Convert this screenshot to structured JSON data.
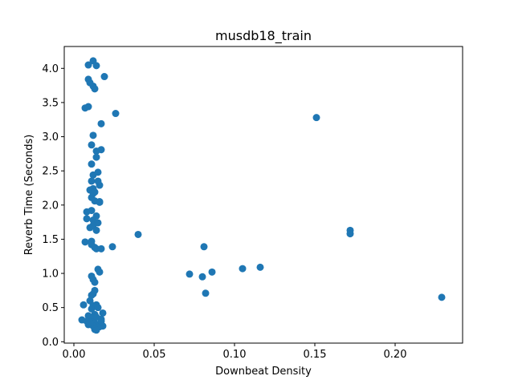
{
  "chart_data": {
    "type": "scatter",
    "title": "musdb18_train",
    "xlabel": "Downbeat Density",
    "ylabel": "Reverb Time (Seconds)",
    "xlim": [
      -0.006,
      0.242
    ],
    "ylim": [
      -0.02,
      4.32
    ],
    "xticks": [
      0.0,
      0.05,
      0.1,
      0.15,
      0.2
    ],
    "xtick_labels": [
      "0.00",
      "0.05",
      "0.10",
      "0.15",
      "0.20"
    ],
    "yticks": [
      0.0,
      0.5,
      1.0,
      1.5,
      2.0,
      2.5,
      3.0,
      3.5,
      4.0
    ],
    "ytick_labels": [
      "0.0",
      "0.5",
      "1.0",
      "1.5",
      "2.0",
      "2.5",
      "3.0",
      "3.5",
      "4.0"
    ],
    "grid": false,
    "marker_color": "#1f77b4",
    "series": [
      {
        "x": [
          0.009,
          0.012,
          0.014,
          0.019,
          0.009,
          0.01,
          0.012,
          0.013,
          0.007,
          0.009,
          0.026,
          0.017,
          0.012,
          0.011,
          0.017,
          0.014,
          0.014,
          0.011,
          0.012,
          0.015,
          0.011,
          0.016,
          0.015,
          0.01,
          0.012,
          0.013,
          0.016,
          0.012,
          0.011,
          0.013,
          0.016,
          0.008,
          0.011,
          0.014,
          0.008,
          0.012,
          0.015,
          0.01,
          0.012,
          0.014,
          0.007,
          0.011,
          0.011,
          0.013,
          0.014,
          0.017,
          0.024,
          0.04,
          0.081,
          0.015,
          0.016,
          0.072,
          0.011,
          0.08,
          0.086,
          0.105,
          0.116,
          0.012,
          0.013,
          0.082,
          0.013,
          0.012,
          0.011,
          0.01,
          0.006,
          0.014,
          0.012,
          0.011,
          0.015,
          0.018,
          0.013,
          0.009,
          0.012,
          0.014,
          0.017,
          0.005,
          0.008,
          0.011,
          0.013,
          0.016,
          0.009,
          0.012,
          0.015,
          0.018,
          0.01,
          0.013,
          0.016,
          0.014,
          0.017,
          0.151,
          0.172,
          0.172,
          0.229
        ],
        "y": [
          4.05,
          4.11,
          4.04,
          3.88,
          3.84,
          3.79,
          3.74,
          3.7,
          3.42,
          3.44,
          3.34,
          3.19,
          3.02,
          2.88,
          2.81,
          2.79,
          2.7,
          2.6,
          2.44,
          2.48,
          2.35,
          2.29,
          2.35,
          2.22,
          2.24,
          2.19,
          2.04,
          2.17,
          2.11,
          2.06,
          2.05,
          1.9,
          1.92,
          1.84,
          1.8,
          1.78,
          1.74,
          1.67,
          1.7,
          1.63,
          1.46,
          1.42,
          1.47,
          1.38,
          1.36,
          1.36,
          1.39,
          1.57,
          1.39,
          1.06,
          1.02,
          0.99,
          0.96,
          0.95,
          1.02,
          1.07,
          1.09,
          0.91,
          0.87,
          0.71,
          0.75,
          0.7,
          0.68,
          0.6,
          0.54,
          0.54,
          0.53,
          0.48,
          0.5,
          0.42,
          0.4,
          0.38,
          0.35,
          0.36,
          0.33,
          0.32,
          0.3,
          0.29,
          0.27,
          0.26,
          0.25,
          0.23,
          0.21,
          0.23,
          0.28,
          0.18,
          0.22,
          0.17,
          0.3,
          3.28,
          1.63,
          1.58,
          0.65
        ]
      }
    ]
  }
}
